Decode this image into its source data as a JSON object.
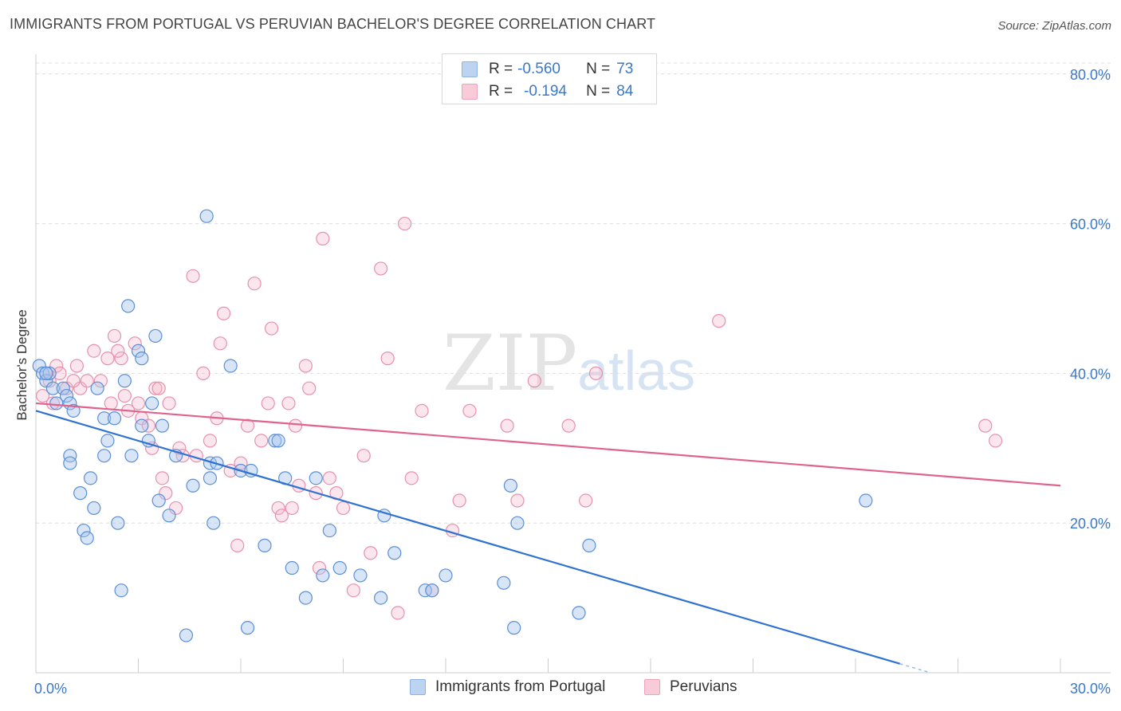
{
  "title": "IMMIGRANTS FROM PORTUGAL VS PERUVIAN BACHELOR'S DEGREE CORRELATION CHART",
  "source": "Source: ZipAtlas.com",
  "watermark": {
    "zip": "ZIP",
    "atlas": "atlas"
  },
  "colors": {
    "blue": "#3b78c8",
    "blue_fill": "#a9c6ee",
    "pink": "#e0628e",
    "pink_fill": "#f5b7ca"
  },
  "legend": {
    "rows": [
      {
        "r_label": "R = ",
        "r_value": "-0.560",
        "n_label": "N = ",
        "n_value": "73",
        "color": "blue"
      },
      {
        "r_label": "R = ",
        "r_value": "-0.194",
        "n_label": "N = ",
        "n_value": "84",
        "color": "pink"
      }
    ]
  },
  "bottom_legend": [
    {
      "label": "Immigrants from Portugal",
      "color": "blue"
    },
    {
      "label": "Peruvians",
      "color": "pink"
    }
  ],
  "chart_data": {
    "type": "scatter",
    "title": "IMMIGRANTS FROM PORTUGAL VS PERUVIAN BACHELOR'S DEGREE CORRELATION CHART",
    "xlabel": "",
    "ylabel": "Bachelor's Degree",
    "xlim": [
      0,
      30
    ],
    "ylim": [
      0,
      82
    ],
    "x_tick_labels": [
      "0.0%",
      "30.0%"
    ],
    "y_ticks": [
      20,
      40,
      60,
      80
    ],
    "y_tick_labels": [
      "20.0%",
      "40.0%",
      "60.0%",
      "80.0%"
    ],
    "grid": "horizontal dashed",
    "legend_position": "top-center",
    "series": [
      {
        "name": "Immigrants from Portugal",
        "color": "blue",
        "trend": {
          "x": [
            0.0,
            25.3
          ],
          "y": [
            35.0,
            1.2
          ]
        },
        "points": [
          [
            0.1,
            41
          ],
          [
            0.2,
            40
          ],
          [
            0.3,
            39
          ],
          [
            0.4,
            40
          ],
          [
            0.5,
            38
          ],
          [
            0.6,
            36
          ],
          [
            0.8,
            38
          ],
          [
            0.9,
            37
          ],
          [
            1.0,
            36
          ],
          [
            1.1,
            35
          ],
          [
            1.0,
            29
          ],
          [
            1.0,
            28
          ],
          [
            1.3,
            24
          ],
          [
            1.4,
            19
          ],
          [
            1.5,
            18
          ],
          [
            1.6,
            26
          ],
          [
            1.7,
            22
          ],
          [
            1.8,
            38
          ],
          [
            2.0,
            29
          ],
          [
            2.0,
            34
          ],
          [
            2.1,
            31
          ],
          [
            2.3,
            34
          ],
          [
            2.4,
            20
          ],
          [
            2.5,
            11
          ],
          [
            2.6,
            39
          ],
          [
            2.7,
            49
          ],
          [
            2.8,
            29
          ],
          [
            3.0,
            43
          ],
          [
            3.1,
            33
          ],
          [
            3.1,
            42
          ],
          [
            3.3,
            31
          ],
          [
            3.4,
            36
          ],
          [
            3.5,
            45
          ],
          [
            3.6,
            23
          ],
          [
            3.7,
            33
          ],
          [
            3.9,
            21
          ],
          [
            4.1,
            29
          ],
          [
            4.4,
            5
          ],
          [
            4.6,
            25
          ],
          [
            5.0,
            61
          ],
          [
            5.1,
            28
          ],
          [
            5.1,
            26
          ],
          [
            5.2,
            20
          ],
          [
            5.3,
            28
          ],
          [
            5.7,
            41
          ],
          [
            6.0,
            27
          ],
          [
            6.2,
            6
          ],
          [
            6.3,
            27
          ],
          [
            6.7,
            17
          ],
          [
            7.0,
            31
          ],
          [
            7.1,
            31
          ],
          [
            7.3,
            26
          ],
          [
            7.5,
            14
          ],
          [
            7.9,
            10
          ],
          [
            8.2,
            26
          ],
          [
            8.4,
            13
          ],
          [
            8.6,
            19
          ],
          [
            8.9,
            14
          ],
          [
            9.5,
            13
          ],
          [
            10.1,
            10
          ],
          [
            10.2,
            21
          ],
          [
            10.5,
            16
          ],
          [
            11.4,
            11
          ],
          [
            11.6,
            11
          ],
          [
            12.0,
            13
          ],
          [
            13.7,
            12
          ],
          [
            13.9,
            25
          ],
          [
            14.0,
            6
          ],
          [
            14.1,
            20
          ],
          [
            15.9,
            8
          ],
          [
            16.2,
            17
          ],
          [
            24.3,
            23
          ],
          [
            0.3,
            40
          ]
        ]
      },
      {
        "name": "Peruvians",
        "color": "pink",
        "trend": {
          "x": [
            0.0,
            30.0
          ],
          "y": [
            36.0,
            25.0
          ]
        },
        "points": [
          [
            0.2,
            37
          ],
          [
            0.3,
            40
          ],
          [
            0.4,
            39
          ],
          [
            0.6,
            41
          ],
          [
            0.7,
            40
          ],
          [
            0.9,
            38
          ],
          [
            1.2,
            41
          ],
          [
            1.3,
            38
          ],
          [
            1.5,
            39
          ],
          [
            1.7,
            43
          ],
          [
            1.9,
            39
          ],
          [
            2.1,
            42
          ],
          [
            2.2,
            36
          ],
          [
            2.3,
            45
          ],
          [
            2.5,
            42
          ],
          [
            2.6,
            37
          ],
          [
            2.7,
            35
          ],
          [
            2.9,
            44
          ],
          [
            3.0,
            36
          ],
          [
            3.1,
            34
          ],
          [
            3.3,
            33
          ],
          [
            3.4,
            30
          ],
          [
            3.5,
            38
          ],
          [
            3.6,
            38
          ],
          [
            3.7,
            26
          ],
          [
            3.8,
            24
          ],
          [
            3.9,
            36
          ],
          [
            4.1,
            22
          ],
          [
            4.2,
            30
          ],
          [
            4.3,
            29
          ],
          [
            4.6,
            53
          ],
          [
            4.7,
            29
          ],
          [
            4.9,
            40
          ],
          [
            5.1,
            31
          ],
          [
            5.3,
            34
          ],
          [
            5.4,
            44
          ],
          [
            5.5,
            48
          ],
          [
            5.7,
            27
          ],
          [
            5.9,
            17
          ],
          [
            6.0,
            28
          ],
          [
            6.2,
            33
          ],
          [
            6.4,
            52
          ],
          [
            6.6,
            31
          ],
          [
            6.8,
            36
          ],
          [
            6.9,
            46
          ],
          [
            7.1,
            22
          ],
          [
            7.2,
            21
          ],
          [
            7.4,
            36
          ],
          [
            7.5,
            22
          ],
          [
            7.6,
            33
          ],
          [
            7.7,
            25
          ],
          [
            7.9,
            41
          ],
          [
            8.0,
            38
          ],
          [
            8.2,
            24
          ],
          [
            8.3,
            14
          ],
          [
            8.4,
            58
          ],
          [
            8.6,
            26
          ],
          [
            8.8,
            24
          ],
          [
            9.0,
            22
          ],
          [
            9.3,
            11
          ],
          [
            9.6,
            29
          ],
          [
            9.8,
            16
          ],
          [
            10.1,
            54
          ],
          [
            10.3,
            42
          ],
          [
            10.6,
            8
          ],
          [
            10.8,
            60
          ],
          [
            11.0,
            26
          ],
          [
            11.3,
            35
          ],
          [
            11.6,
            11
          ],
          [
            12.2,
            19
          ],
          [
            12.4,
            23
          ],
          [
            12.7,
            35
          ],
          [
            13.8,
            33
          ],
          [
            14.1,
            23
          ],
          [
            14.6,
            39
          ],
          [
            15.6,
            33
          ],
          [
            16.1,
            23
          ],
          [
            16.4,
            40
          ],
          [
            20.0,
            47
          ],
          [
            27.8,
            33
          ],
          [
            28.1,
            31
          ],
          [
            0.5,
            36
          ],
          [
            1.1,
            39
          ],
          [
            2.4,
            43
          ]
        ]
      }
    ]
  }
}
